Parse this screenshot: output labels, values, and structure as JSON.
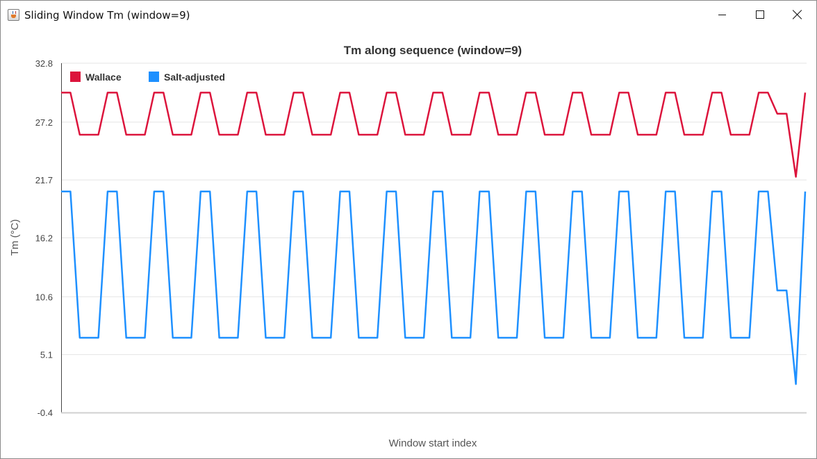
{
  "window": {
    "title": "Sliding Window Tm (window=9)",
    "icon": "java-cup-icon",
    "controls": [
      "minimize-icon",
      "maximize-icon",
      "close-icon"
    ]
  },
  "chart_data": {
    "type": "line",
    "title": "Tm along sequence (window=9)",
    "xlabel": "Window start index",
    "ylabel": "Tm (°C)",
    "ylim": [
      -0.4,
      32.8
    ],
    "yticks": [
      "32.8",
      "27.2",
      "21.7",
      "16.2",
      "10.6",
      "5.1",
      "-0.4"
    ],
    "grid": true,
    "legend_position": "top-left",
    "x": [
      0,
      1,
      2,
      3,
      4,
      5,
      6,
      7,
      8,
      9,
      10,
      11,
      12,
      13,
      14,
      15,
      16,
      17,
      18,
      19,
      20,
      21,
      22,
      23,
      24,
      25,
      26,
      27,
      28,
      29,
      30,
      31,
      32,
      33,
      34,
      35,
      36,
      37,
      38,
      39,
      40,
      41,
      42,
      43,
      44,
      45,
      46,
      47,
      48,
      49,
      50,
      51,
      52,
      53,
      54,
      55,
      56,
      57,
      58,
      59,
      60,
      61,
      62,
      63,
      64,
      65,
      66,
      67,
      68,
      69,
      70,
      71,
      72,
      73,
      74,
      75,
      76,
      77,
      78,
      79,
      80
    ],
    "series": [
      {
        "name": "Wallace",
        "color": "#dc143c",
        "values": [
          30,
          30,
          26,
          26,
          26,
          30,
          30,
          26,
          26,
          26,
          30,
          30,
          26,
          26,
          26,
          30,
          30,
          26,
          26,
          26,
          30,
          30,
          26,
          26,
          26,
          30,
          30,
          26,
          26,
          26,
          30,
          30,
          26,
          26,
          26,
          30,
          30,
          26,
          26,
          26,
          30,
          30,
          26,
          26,
          26,
          30,
          30,
          26,
          26,
          26,
          30,
          30,
          26,
          26,
          26,
          30,
          30,
          26,
          26,
          26,
          30,
          30,
          26,
          26,
          26,
          30,
          30,
          26,
          26,
          26,
          30,
          30,
          26,
          26,
          26,
          30,
          30,
          28,
          28,
          22,
          30
        ]
      },
      {
        "name": "Salt-adjusted",
        "color": "#1e90ff",
        "values": [
          20.6,
          20.6,
          6.7,
          6.7,
          6.7,
          20.6,
          20.6,
          6.7,
          6.7,
          6.7,
          20.6,
          20.6,
          6.7,
          6.7,
          6.7,
          20.6,
          20.6,
          6.7,
          6.7,
          6.7,
          20.6,
          20.6,
          6.7,
          6.7,
          6.7,
          20.6,
          20.6,
          6.7,
          6.7,
          6.7,
          20.6,
          20.6,
          6.7,
          6.7,
          6.7,
          20.6,
          20.6,
          6.7,
          6.7,
          6.7,
          20.6,
          20.6,
          6.7,
          6.7,
          6.7,
          20.6,
          20.6,
          6.7,
          6.7,
          6.7,
          20.6,
          20.6,
          6.7,
          6.7,
          6.7,
          20.6,
          20.6,
          6.7,
          6.7,
          6.7,
          20.6,
          20.6,
          6.7,
          6.7,
          6.7,
          20.6,
          20.6,
          6.7,
          6.7,
          6.7,
          20.6,
          20.6,
          6.7,
          6.7,
          6.7,
          20.6,
          20.6,
          11.2,
          11.2,
          2.3,
          20.6
        ]
      }
    ]
  }
}
